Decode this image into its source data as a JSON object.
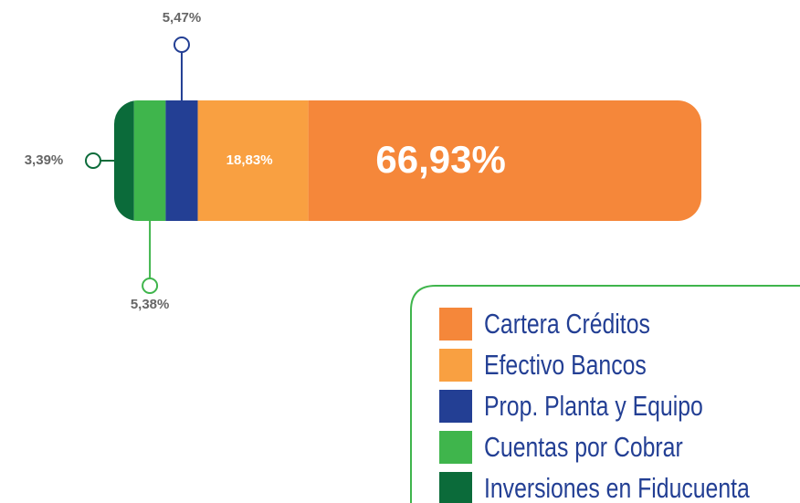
{
  "chart_data": {
    "type": "bar",
    "orientation": "horizontal",
    "stacked": true,
    "series": [
      {
        "name": "Inversiones en Fiducuenta",
        "color": "#0b6b3a",
        "values": [
          3.39
        ],
        "value_labels": [
          "3,39%"
        ]
      },
      {
        "name": "Cuentas por Cobrar",
        "color": "#3fb54c",
        "values": [
          5.38
        ],
        "value_labels": [
          "5,38%"
        ]
      },
      {
        "name": "Prop. Planta y Equipo",
        "color": "#233f94",
        "values": [
          5.47
        ],
        "value_labels": [
          "5,47%"
        ]
      },
      {
        "name": "Efectivo Bancos",
        "color": "#f9a041",
        "values": [
          18.83
        ],
        "value_labels": [
          "18,83%"
        ]
      },
      {
        "name": "Cartera Créditos",
        "color": "#f5873a",
        "values": [
          66.93
        ],
        "value_labels": [
          "66,93%"
        ]
      }
    ],
    "legend": "bottom-right"
  }
}
